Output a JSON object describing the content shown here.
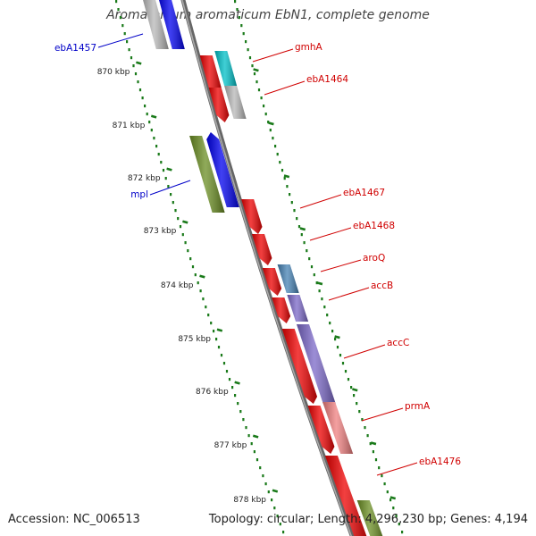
{
  "title": "Aromatoleum aromaticum EbN1, complete genome",
  "footer": {
    "accession": "Accession: NC_006513",
    "summary": "Topology: circular; Length: 4,296,230 bp; Genes: 4,194"
  },
  "colors": {
    "backbone": "#808080",
    "scale_ticks": "#1a7a1a",
    "label_left": "#0000c8",
    "label_right": "#d00000",
    "red_gene": "#ee0000",
    "blue_gene": "#0000ee",
    "olive_gene": "#6b8e23",
    "cyan_gene": "#00c0c8",
    "gray_gene": "#b8b8b8",
    "steelblue_gene": "#4682b4",
    "purple_gene": "#7b68c8",
    "salmon_gene": "#f08080"
  },
  "scale": {
    "unit": "kbp",
    "labels": [
      "870 kbp",
      "871 kbp",
      "872 kbp",
      "873 kbp",
      "874 kbp",
      "875 kbp",
      "876 kbp",
      "877 kbp",
      "878 kbp"
    ]
  },
  "genes": [
    {
      "label": "ebA1457",
      "side": "left",
      "label_color": "blue"
    },
    {
      "label": "gmhA",
      "side": "right",
      "label_color": "red"
    },
    {
      "label": "ebA1464",
      "side": "right",
      "label_color": "red"
    },
    {
      "label": "mpl",
      "side": "left",
      "label_color": "blue"
    },
    {
      "label": "ebA1467",
      "side": "right",
      "label_color": "red"
    },
    {
      "label": "ebA1468",
      "side": "right",
      "label_color": "red"
    },
    {
      "label": "aroQ",
      "side": "right",
      "label_color": "red"
    },
    {
      "label": "accB",
      "side": "right",
      "label_color": "red"
    },
    {
      "label": "accC",
      "side": "right",
      "label_color": "red"
    },
    {
      "label": "prmA",
      "side": "right",
      "label_color": "red"
    },
    {
      "label": "ebA1476",
      "side": "right",
      "label_color": "red"
    }
  ]
}
